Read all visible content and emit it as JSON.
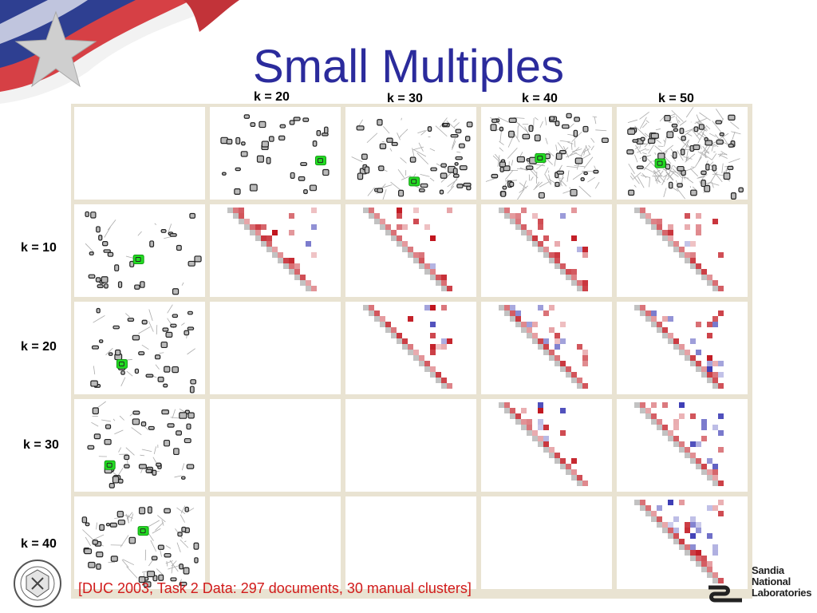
{
  "slide": {
    "title": "Small Multiples",
    "caption": "[DUC 2003, Task 2 Data: 297 documents, 30 manual clusters]"
  },
  "columns": [
    "k = 20",
    "k = 30",
    "k = 40",
    "k = 50"
  ],
  "rows": [
    "k = 10",
    "k = 20",
    "k = 30",
    "k = 40"
  ],
  "logo": {
    "sandia_lines": [
      "Sandia",
      "National",
      "Laboratories"
    ],
    "doe_seal": "doe-seal"
  },
  "colors": {
    "title": "#2b2b9c",
    "caption": "#d11a1a",
    "grid_background": "#e9e3d2",
    "highlight": "#22dd22",
    "positive": "#c0121b",
    "negative": "#3a3ab4"
  },
  "grid_layout": {
    "top_row": "cluster graphs for k = 20, 30, 40, 50",
    "left_column": "cluster graphs for k = 10, 20, 30, 40",
    "upper_triangle": "pairwise cluster comparison matrices"
  }
}
